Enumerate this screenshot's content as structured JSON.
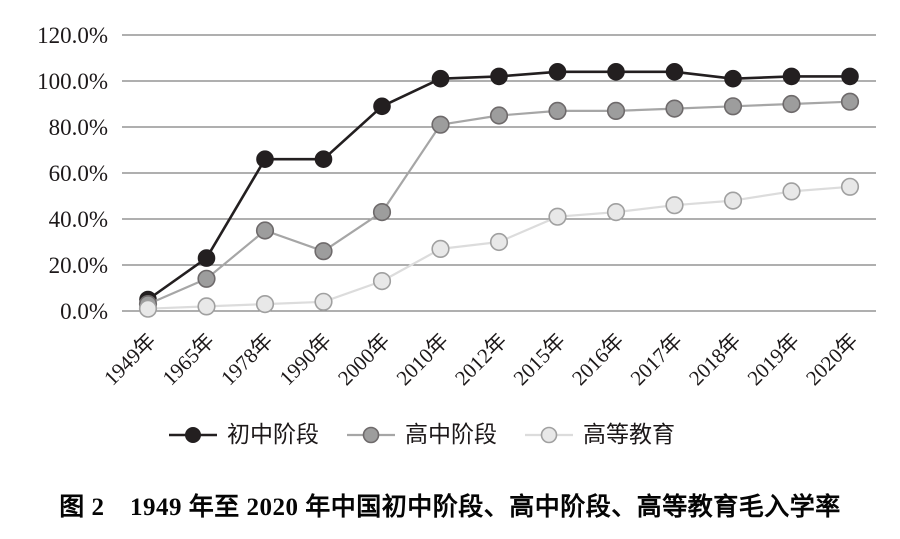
{
  "figure": {
    "caption": "图 2　1949 年至 2020 年中国初中阶段、高中阶段、高等教育毛入学率"
  },
  "chart_data": {
    "type": "line",
    "title": "",
    "xlabel": "",
    "ylabel": "",
    "categories": [
      "1949年",
      "1965年",
      "1978年",
      "1990年",
      "2000年",
      "2010年",
      "2012年",
      "2015年",
      "2016年",
      "2017年",
      "2018年",
      "2019年",
      "2020年"
    ],
    "series": [
      {
        "name": "初中阶段",
        "values": [
          5,
          23,
          66,
          66,
          89,
          101,
          102,
          104,
          104,
          104,
          101,
          102,
          102
        ],
        "line_color": "#231f20",
        "marker_fill": "#231f20",
        "marker_stroke": "#231f20",
        "line_width": 2.6,
        "marker_stroke_width": 1
      },
      {
        "name": "高中阶段",
        "values": [
          3,
          14,
          35,
          26,
          43,
          81,
          85,
          87,
          87,
          88,
          89,
          90,
          91
        ],
        "line_color": "#a6a6a6",
        "marker_fill": "#9d9d9d",
        "marker_stroke": "#6e6a6b",
        "line_width": 2.2,
        "marker_stroke_width": 1.6
      },
      {
        "name": "高等教育",
        "values": [
          1,
          2,
          3,
          4,
          13,
          27,
          30,
          41,
          43,
          46,
          48,
          52,
          54
        ],
        "line_color": "#dcdcdc",
        "marker_fill": "#e8e8e8",
        "marker_stroke": "#a0a0a0",
        "line_width": 2.2,
        "marker_stroke_width": 1.6
      }
    ],
    "ylim": [
      0,
      120
    ],
    "ytick_step": 20,
    "ytick_labels": [
      "0.0%",
      "20.0%",
      "40.0%",
      "60.0%",
      "80.0%",
      "100.0%",
      "120.0%"
    ],
    "grid": "horizontal",
    "gridline_color": "#7f7f7f",
    "text_color": "#1c1819",
    "legend_position": "bottom",
    "x_label_rotation": -45
  }
}
